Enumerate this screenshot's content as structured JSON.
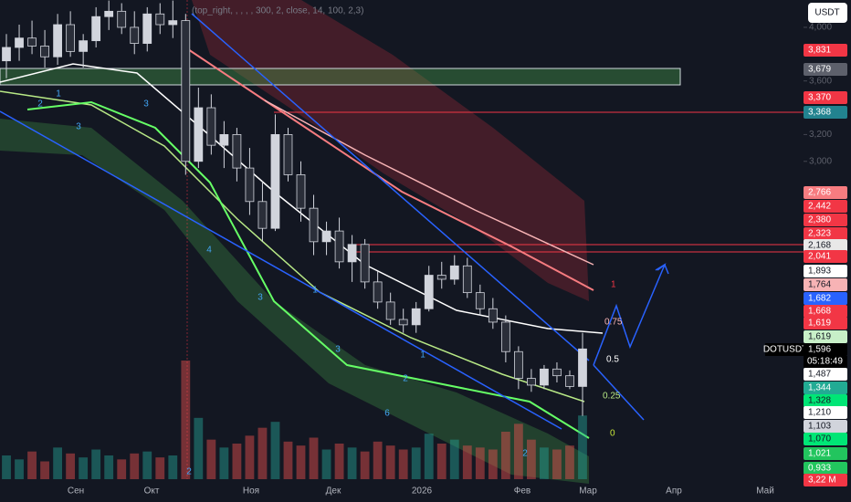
{
  "chart_data": {
    "type": "candlestick",
    "indicator_header": "(top_right, , , , , 300, 2, close, 14, 100, 2,3)",
    "currency_button": "USDT",
    "symbol": "DOTUSDT",
    "countdown": "05:18:49",
    "ylim": [
      0.628,
      4.204
    ],
    "yticks": [
      {
        "value": 4.0,
        "label": "4,000"
      },
      {
        "value": 3.6,
        "label": "3,600"
      },
      {
        "value": 3.2,
        "label": "3,200"
      },
      {
        "value": 3.0,
        "label": "3,000"
      }
    ],
    "time_labels": [
      "Сен",
      "Окт",
      "Ноя",
      "Дек",
      "2026",
      "Фев",
      "Мар",
      "Апр",
      "Май"
    ],
    "up_color": "#d1d4dc",
    "down_color": "#2a2e39",
    "open": [
      3.75,
      3.85,
      3.92,
      3.86,
      3.78,
      4.02,
      3.82,
      3.9,
      4.08,
      4.12,
      4.0,
      3.88,
      4.1,
      4.02,
      4.05,
      3.0,
      3.4,
      3.12,
      3.2,
      2.95,
      2.7,
      2.5,
      3.2,
      2.9,
      2.65,
      2.4,
      2.48,
      2.25,
      2.38,
      2.1,
      1.95,
      1.82,
      1.78,
      1.9,
      2.15,
      2.12,
      2.22,
      2.02,
      1.9,
      1.8,
      1.58,
      1.38,
      1.33,
      1.45,
      1.4,
      1.32
    ],
    "high": [
      3.95,
      4.02,
      4.05,
      3.98,
      4.1,
      4.12,
      3.95,
      4.15,
      4.2,
      4.18,
      4.12,
      4.15,
      4.18,
      4.2,
      4.1,
      3.55,
      3.5,
      3.3,
      3.25,
      3.1,
      2.85,
      3.35,
      3.25,
      3.0,
      2.75,
      2.55,
      2.58,
      2.45,
      2.42,
      2.18,
      2.02,
      1.9,
      1.95,
      2.22,
      2.25,
      2.3,
      2.28,
      2.08,
      1.98,
      1.85,
      1.62,
      1.45,
      1.48,
      1.5,
      1.44,
      1.72
    ],
    "low": [
      3.62,
      3.75,
      3.8,
      3.7,
      3.72,
      3.78,
      3.7,
      3.85,
      3.98,
      3.95,
      3.8,
      3.82,
      3.95,
      3.92,
      2.9,
      2.95,
      3.05,
      2.95,
      2.85,
      2.6,
      2.4,
      2.48,
      2.85,
      2.55,
      2.3,
      2.3,
      2.2,
      2.1,
      2.05,
      1.9,
      1.78,
      1.72,
      1.72,
      1.88,
      2.05,
      2.08,
      1.98,
      1.85,
      1.75,
      1.5,
      1.3,
      1.28,
      1.3,
      1.35,
      1.3,
      1.1
    ],
    "close": [
      3.85,
      3.92,
      3.86,
      3.78,
      4.02,
      3.82,
      3.9,
      4.08,
      4.12,
      4.0,
      3.88,
      4.1,
      4.02,
      4.05,
      3.0,
      3.4,
      3.12,
      3.2,
      2.95,
      2.7,
      2.5,
      3.2,
      2.9,
      2.65,
      2.4,
      2.48,
      2.25,
      2.38,
      2.1,
      1.95,
      1.82,
      1.78,
      1.9,
      2.15,
      2.12,
      2.22,
      2.02,
      1.9,
      1.8,
      1.58,
      1.38,
      1.33,
      1.45,
      1.4,
      1.32,
      1.6
    ],
    "volume": [
      1.2,
      1.0,
      1.4,
      0.9,
      1.6,
      1.3,
      1.1,
      1.5,
      1.2,
      1.0,
      1.3,
      1.4,
      1.1,
      1.2,
      6.0,
      3.1,
      2.0,
      1.6,
      1.8,
      2.2,
      2.6,
      2.9,
      1.9,
      1.7,
      2.1,
      1.5,
      1.8,
      1.6,
      1.4,
      1.9,
      1.7,
      1.5,
      1.6,
      2.3,
      1.8,
      2.0,
      1.7,
      1.6,
      1.5,
      2.4,
      2.8,
      2.0,
      1.6,
      1.5,
      1.7,
      3.22
    ],
    "price_tags": [
      {
        "label": "3,831",
        "color": "#f23645",
        "text": "#ffffff"
      },
      {
        "label": "3,679",
        "color": "#5d606b",
        "text": "#ffffff"
      },
      {
        "label": "3,370",
        "color": "#f23645",
        "text": "#ffffff"
      },
      {
        "label": "3,368",
        "color": "#22838f",
        "text": "#ffffff"
      },
      {
        "label": "2,766",
        "color": "#f77c80",
        "text": "#ffffff"
      },
      {
        "label": "2,442",
        "color": "#f23645",
        "text": "#ffffff"
      },
      {
        "label": "2,380",
        "color": "#f23645",
        "text": "#ffffff"
      },
      {
        "label": "2,323",
        "color": "#f23645",
        "text": "#ffffff"
      },
      {
        "label": "2,168",
        "color": "#e8e8e8",
        "text": "#131722"
      },
      {
        "label": "2,041",
        "color": "#f23645",
        "text": "#ffffff"
      },
      {
        "label": "1,893",
        "color": "#ffffff",
        "text": "#131722"
      },
      {
        "label": "1,764",
        "color": "#f7b3b5",
        "text": "#131722"
      },
      {
        "label": "1,682",
        "color": "#2962ff",
        "text": "#ffffff"
      },
      {
        "label": "1,668",
        "color": "#f23645",
        "text": "#ffffff"
      },
      {
        "label": "1,619",
        "color": "#f23645",
        "text": "#ffffff"
      },
      {
        "label": "1,619",
        "color": "#c8f0c8",
        "text": "#131722"
      },
      {
        "label": "1,596",
        "color": "#000000",
        "text": "#ffffff"
      },
      {
        "label": "1,487",
        "color": "#ffffff",
        "text": "#131722"
      },
      {
        "label": "1,344",
        "color": "#22ab94",
        "text": "#ffffff"
      },
      {
        "label": "1,328",
        "color": "#00e676",
        "text": "#131722"
      },
      {
        "label": "1,210",
        "color": "#ffffff",
        "text": "#131722"
      },
      {
        "label": "1,103",
        "color": "#d1d4dc",
        "text": "#131722"
      },
      {
        "label": "1,070",
        "color": "#00e676",
        "text": "#131722"
      },
      {
        "label": "1,021",
        "color": "#22c55e",
        "text": "#ffffff"
      },
      {
        "label": "0,933",
        "color": "#22c55e",
        "text": "#ffffff"
      },
      {
        "label": "3,22 M",
        "color": "#f23645",
        "text": "#ffffff"
      }
    ],
    "fib_labels": [
      {
        "label": "1",
        "color": "#f23645"
      },
      {
        "label": "0.75",
        "color": "#f7b3b5"
      },
      {
        "label": "0.5",
        "color": "#ffffff"
      },
      {
        "label": "0.25",
        "color": "#b8e986"
      },
      {
        "label": "0",
        "color": "#c8e639"
      }
    ],
    "wave_counts": [
      "1",
      "2",
      "3",
      "3",
      "4",
      "3",
      "1",
      "3",
      "2",
      "6",
      "1",
      "2",
      "2"
    ]
  }
}
